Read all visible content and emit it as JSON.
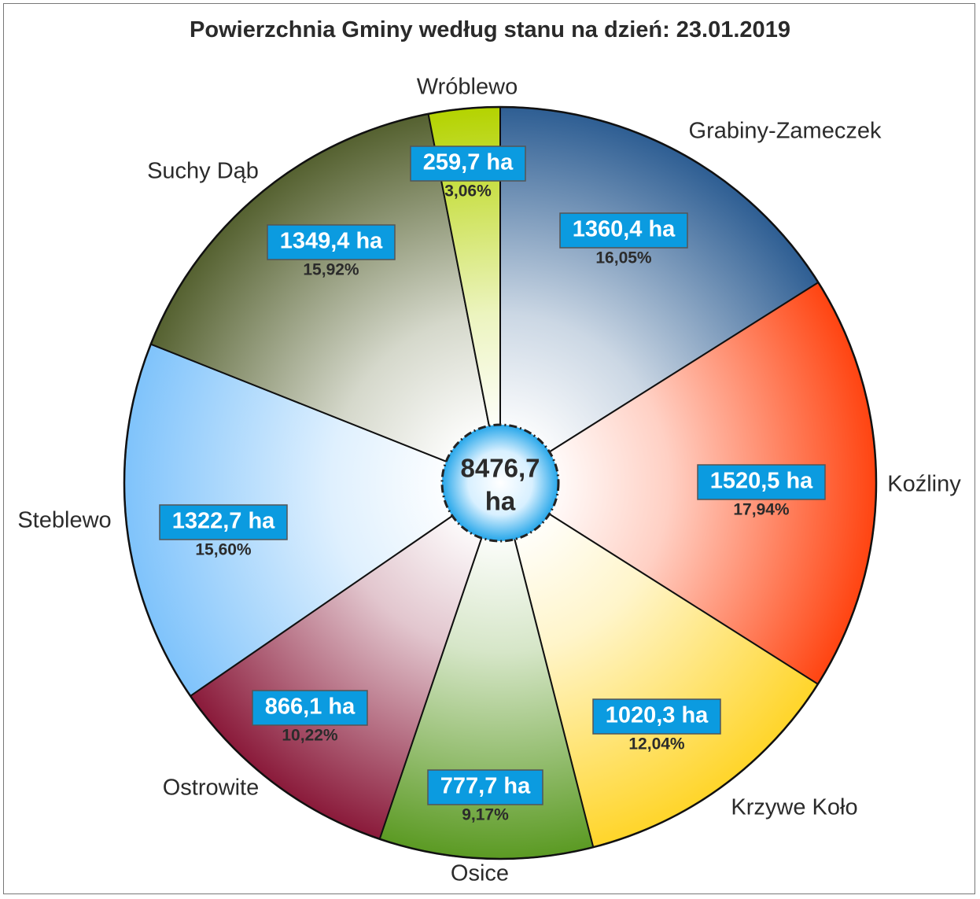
{
  "chart_data": {
    "type": "pie",
    "title": "Powierzchnia Gminy według stanu na dzień: 23.01.2019",
    "total_label": "8476,7",
    "total_unit": "ha",
    "slices": [
      {
        "label": "Grabiny-Zameczek",
        "value": 1360.4,
        "value_label": "1360,4 ha",
        "percent_label": "16,05%",
        "color": "#2e5e93"
      },
      {
        "label": "Koźliny",
        "value": 1520.5,
        "value_label": "1520,5 ha",
        "percent_label": "17,94%",
        "color": "#ff4411"
      },
      {
        "label": "Krzywe Koło",
        "value": 1020.3,
        "value_label": "1020,3 ha",
        "percent_label": "12,04%",
        "color": "#ffd52a"
      },
      {
        "label": "Osice",
        "value": 777.7,
        "value_label": "777,7 ha",
        "percent_label": "9,17%",
        "color": "#5b9a23"
      },
      {
        "label": "Ostrowite",
        "value": 866.1,
        "value_label": "866,1 ha",
        "percent_label": "10,22%",
        "color": "#8a1a3a"
      },
      {
        "label": "Steblewo",
        "value": 1322.7,
        "value_label": "1322,7 ha",
        "percent_label": "15,60%",
        "color": "#7fc3fb"
      },
      {
        "label": "Suchy Dąb",
        "value": 1349.4,
        "value_label": "1349,4 ha",
        "percent_label": "15,92%",
        "color": "#556130"
      },
      {
        "label": "Wróblewo",
        "value": 259.7,
        "value_label": "259,7 ha",
        "percent_label": "3,06%",
        "color": "#b4d300"
      }
    ],
    "label_box_color": "#0b9be0"
  }
}
